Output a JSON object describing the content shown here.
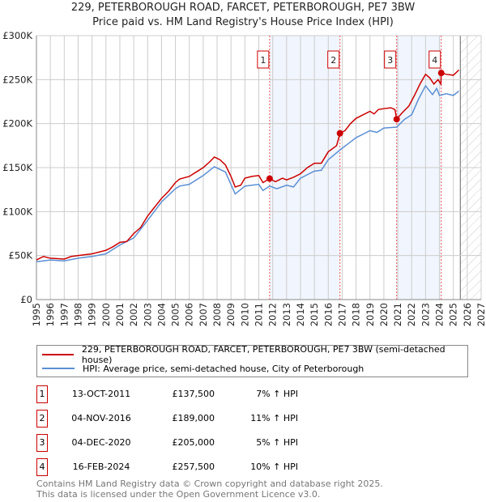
{
  "chart_data": {
    "type": "line",
    "title": "229, PETERBOROUGH ROAD, FARCET, PETERBOROUGH, PE7 3BW",
    "subtitle": "Price paid vs. HM Land Registry's House Price Index (HPI)",
    "xlim": [
      1995,
      2027
    ],
    "ylim": [
      0,
      300000
    ],
    "yticks": [
      {
        "v": 0,
        "label": "£0"
      },
      {
        "v": 50000,
        "label": "£50K"
      },
      {
        "v": 100000,
        "label": "£100K"
      },
      {
        "v": 150000,
        "label": "£150K"
      },
      {
        "v": 200000,
        "label": "£200K"
      },
      {
        "v": 250000,
        "label": "£250K"
      },
      {
        "v": 300000,
        "label": "£300K"
      }
    ],
    "xticks": [
      "1995",
      "1996",
      "1997",
      "1998",
      "1999",
      "2000",
      "2001",
      "2002",
      "2003",
      "2004",
      "2005",
      "2006",
      "2007",
      "2008",
      "2009",
      "2010",
      "2011",
      "2012",
      "2013",
      "2014",
      "2015",
      "2016",
      "2017",
      "2018",
      "2019",
      "2020",
      "2021",
      "2022",
      "2023",
      "2024",
      "2025",
      "2026",
      "2027"
    ],
    "grid": true,
    "shaded_periods": [
      [
        2011.78,
        2016.84
      ],
      [
        2020.92,
        2024.13
      ]
    ],
    "forecast_from": 2025.5,
    "series": [
      {
        "name": "229, PETERBOROUGH ROAD, FARCET, PETERBOROUGH, PE7 3BW (semi-detached house)",
        "color": "#cc0000",
        "x": [
          1995,
          1995.5,
          1996,
          1997,
          1997.5,
          1998,
          1999,
          2000,
          2000.5,
          2001,
          2001.5,
          2002,
          2002.5,
          2003,
          2003.5,
          2004,
          2004.5,
          2005,
          2005.3,
          2006,
          2006.5,
          2007,
          2007.5,
          2007.8,
          2008.2,
          2008.6,
          2009,
          2009.3,
          2009.7,
          2010,
          2010.5,
          2011,
          2011.3,
          2011.78,
          2012.2,
          2012.7,
          2013,
          2013.5,
          2014,
          2014.5,
          2015,
          2015.5,
          2016,
          2016.6,
          2016.84,
          2017.2,
          2017.6,
          2018,
          2018.5,
          2019,
          2019.3,
          2019.6,
          2020,
          2020.5,
          2020.8,
          2020.92,
          2021.3,
          2021.8,
          2022.2,
          2022.6,
          2023,
          2023.3,
          2023.6,
          2023.9,
          2024.1,
          2024.13,
          2024.5,
          2025,
          2025.4
        ],
        "y": [
          45000,
          49000,
          47000,
          46000,
          49000,
          50000,
          52000,
          56000,
          60000,
          65000,
          66000,
          75000,
          82000,
          95000,
          105000,
          115000,
          123000,
          133000,
          137000,
          140000,
          145000,
          150000,
          157000,
          162000,
          159000,
          153000,
          140000,
          128000,
          130000,
          138000,
          140000,
          141000,
          133000,
          137500,
          134000,
          138000,
          136000,
          139000,
          143000,
          150000,
          155000,
          155000,
          168000,
          175000,
          189000,
          192000,
          200000,
          206000,
          210000,
          214000,
          211000,
          216000,
          217000,
          218000,
          216000,
          205000,
          212000,
          220000,
          232000,
          245000,
          256000,
          252000,
          245000,
          250000,
          245000,
          257500,
          256000,
          255000,
          261000
        ]
      },
      {
        "name": "HPI: Average price, semi-detached house, City of Peterborough",
        "color": "#5b8fd4",
        "x": [
          1995,
          1996,
          1997,
          1998,
          1999,
          2000,
          2001,
          2002,
          2003,
          2004,
          2005,
          2005.3,
          2006,
          2007,
          2007.8,
          2008.6,
          2009.3,
          2010,
          2011,
          2011.3,
          2011.78,
          2012.3,
          2013,
          2013.5,
          2014,
          2015,
          2015.5,
          2016,
          2016.84,
          2017.5,
          2018,
          2019,
          2019.5,
          2020,
          2020.92,
          2021.5,
          2022,
          2022.5,
          2023,
          2023.5,
          2023.8,
          2024,
          2024.5,
          2025,
          2025.4
        ],
        "y": [
          43000,
          45000,
          44000,
          47000,
          49000,
          52000,
          62000,
          70000,
          90000,
          111000,
          126000,
          129000,
          131000,
          141000,
          151000,
          145000,
          120000,
          129000,
          131000,
          124000,
          129000,
          126000,
          130000,
          128000,
          138000,
          146000,
          147000,
          159000,
          170000,
          178000,
          184000,
          192000,
          190000,
          195000,
          196000,
          205000,
          210000,
          228000,
          243000,
          233000,
          240000,
          232000,
          234000,
          232000,
          237000
        ]
      }
    ],
    "sales": [
      {
        "n": "1",
        "date": "13-OCT-2011",
        "price": "£137,500",
        "change": "7% ↑ HPI",
        "x": 2011.78,
        "y": 137500
      },
      {
        "n": "2",
        "date": "04-NOV-2016",
        "price": "£189,000",
        "change": "11% ↑ HPI",
        "x": 2016.84,
        "y": 189000
      },
      {
        "n": "3",
        "date": "04-DEC-2020",
        "price": "£205,000",
        "change": "5% ↑ HPI",
        "x": 2020.92,
        "y": 205000
      },
      {
        "n": "4",
        "date": "16-FEB-2024",
        "price": "£257,500",
        "change": "10% ↑ HPI",
        "x": 2024.13,
        "y": 257500
      }
    ]
  },
  "footer": {
    "line1": "Contains HM Land Registry data © Crown copyright and database right 2025.",
    "line2": "This data is licensed under the Open Government Licence v3.0."
  }
}
